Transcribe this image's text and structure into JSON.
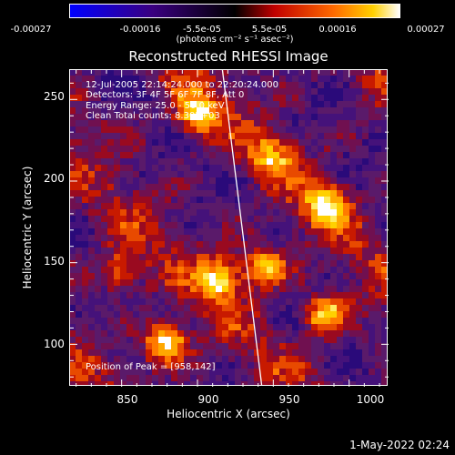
{
  "colorbar": {
    "ticks": [
      "-0.00027",
      "-0.00016",
      "-5.5e-05",
      "5.5e-05",
      "0.00016",
      "0.00027"
    ],
    "unit": "(photons cm⁻² s⁻¹ asec⁻²)"
  },
  "annotations": {
    "time_range": "12-Jul-2005 22:14:24.000 to 22:20:24.000",
    "detectors": "Detectors: 3F 4F 5F 6F 7F 8F, Att 0",
    "energy": "Energy Range: 25.0 - 50.0 keV",
    "clean": "Clean     Total counts: 8.30E+03",
    "peak": "Position of Peak = [958,142]"
  },
  "timestamp": "1-May-2022 02:24",
  "colors": {
    "background": "#000000",
    "axis": "#ffffff"
  },
  "chart_data": {
    "type": "heatmap",
    "title": "Reconstructed RHESSI Image",
    "xlabel": "Heliocentric X (arcsec)",
    "ylabel": "Heliocentric Y (arcsec)",
    "xlim": [
      816,
      1026
    ],
    "ylim": [
      74,
      268
    ],
    "xticks": [
      850,
      900,
      950,
      1000
    ],
    "yticks": [
      100,
      150,
      200,
      250
    ],
    "colormap": "RHESSI heat (blue-purple-red-orange-yellow-white)",
    "value_range": [
      -0.00027,
      0.00027
    ],
    "limb_line": [
      [
        917,
        268
      ],
      [
        943,
        74
      ]
    ],
    "peak_position": [
      958,
      142
    ],
    "bright_regions": [
      {
        "x": 900,
        "y": 240,
        "level": "yellow"
      },
      {
        "x": 915,
        "y": 140,
        "level": "yellow"
      },
      {
        "x": 945,
        "y": 148,
        "level": "yellow"
      },
      {
        "x": 880,
        "y": 100,
        "level": "white"
      },
      {
        "x": 985,
        "y": 185,
        "level": "yellow"
      },
      {
        "x": 985,
        "y": 118,
        "level": "yellow"
      },
      {
        "x": 950,
        "y": 215,
        "level": "orange"
      },
      {
        "x": 850,
        "y": 145,
        "level": "orange"
      }
    ]
  }
}
